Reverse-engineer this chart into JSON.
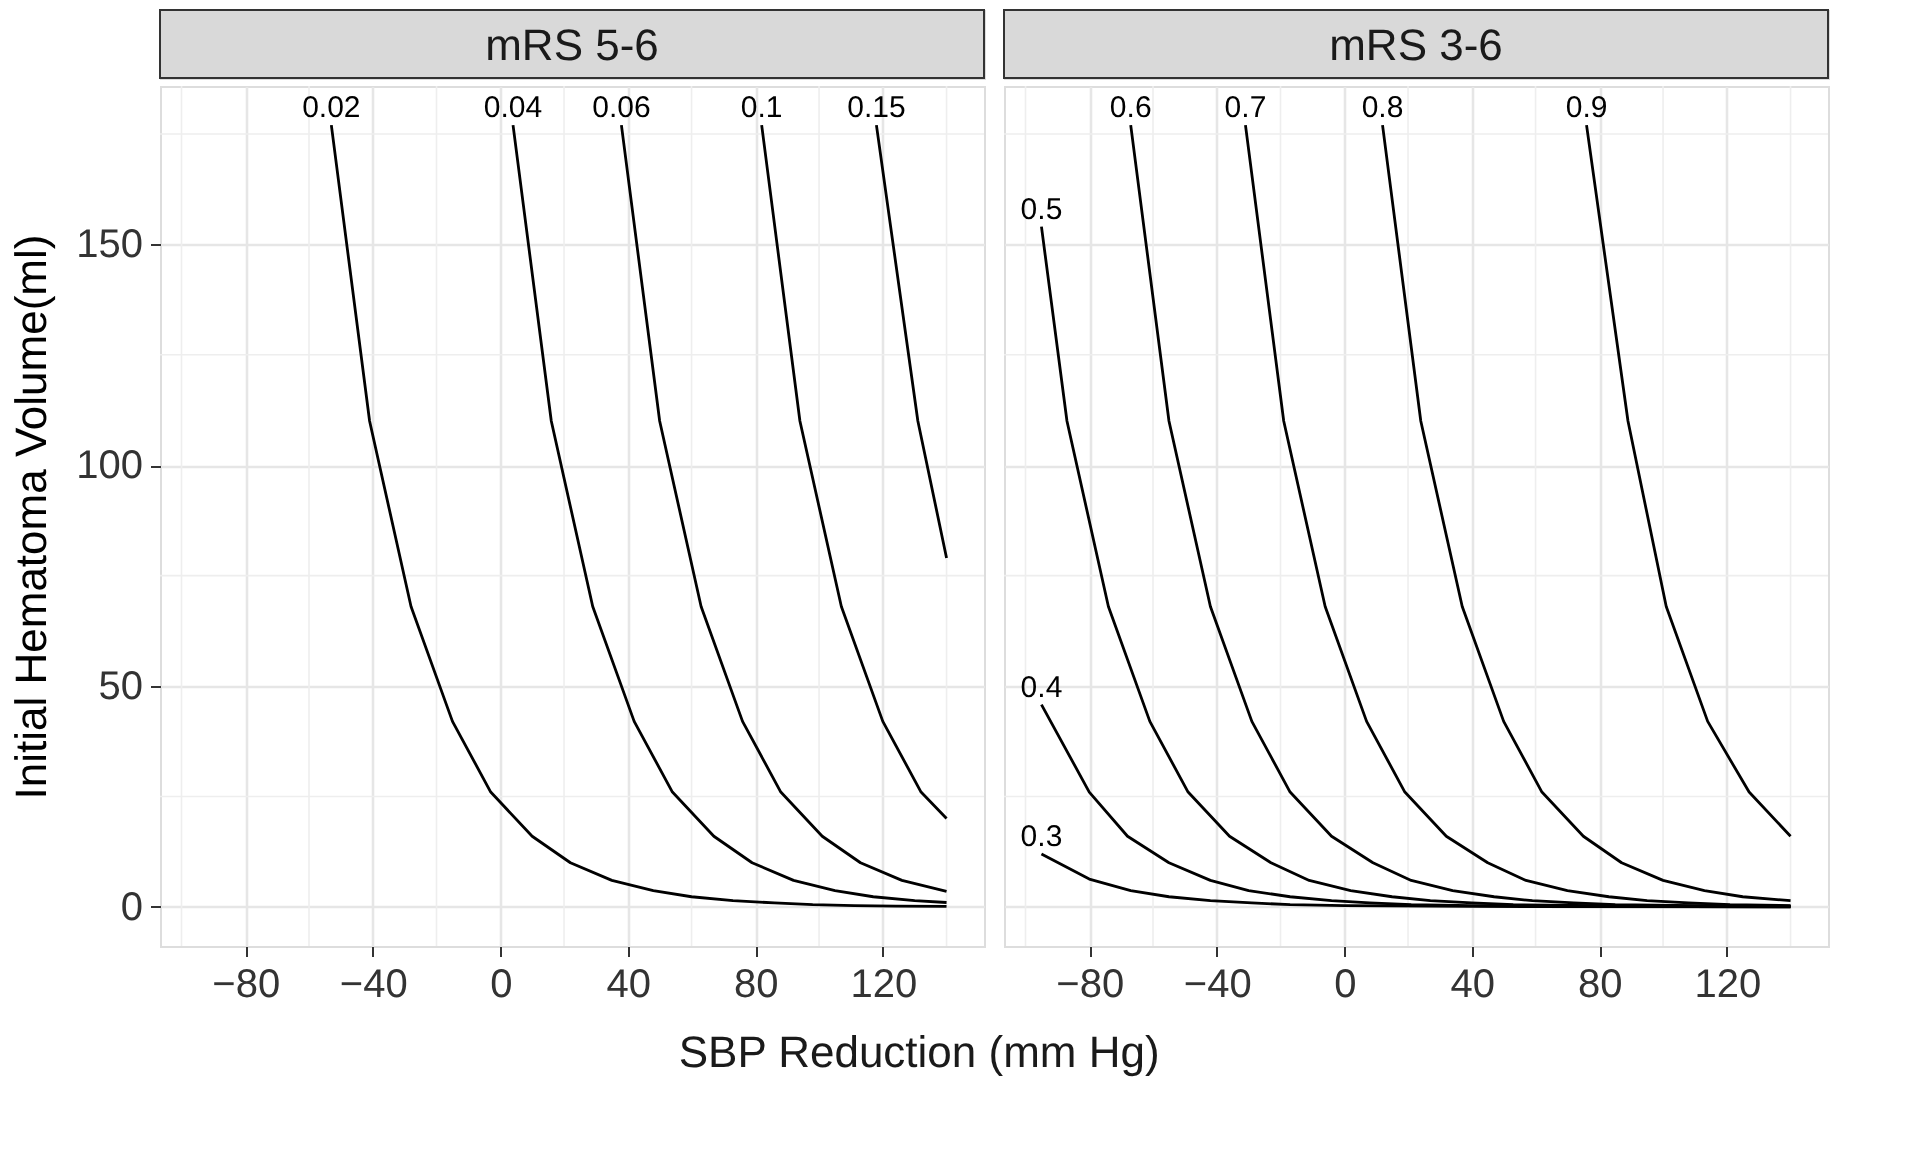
{
  "chart_data": [
    {
      "type": "line",
      "title": "mRS 5-6",
      "xlabel": "SBP Reduction (mm Hg)",
      "ylabel": "Initial Hematoma Volume(ml)",
      "xlim": [
        -106.75,
        151.75
      ],
      "ylim": [
        -8.85,
        185.85
      ],
      "xticks": [
        {
          "value": -100,
          "label": null
        },
        -80,
        {
          "value": -60,
          "label": null
        },
        -40,
        {
          "value": -20,
          "label": null
        },
        0,
        {
          "value": 20,
          "label": null
        },
        40,
        {
          "value": 60,
          "label": null
        },
        80,
        {
          "value": 100,
          "label": null
        },
        120,
        {
          "value": 140,
          "label": null
        }
      ],
      "yticks": [
        0,
        {
          "value": 25,
          "label": null
        },
        50,
        {
          "value": 75,
          "label": null
        },
        100,
        {
          "value": 125,
          "label": null
        },
        150,
        {
          "value": 175,
          "label": null
        }
      ],
      "grid": true,
      "line_style": "solid",
      "series": [
        {
          "name": "0.02",
          "color": "#000000",
          "x": [
            -53,
            -41,
            -28,
            -15,
            -3,
            10,
            22,
            35,
            48,
            60,
            73,
            86,
            98,
            111,
            124,
            140
          ],
          "values": [
            177,
            110,
            68,
            42,
            26,
            16,
            10,
            6,
            3.7,
            2.3,
            1.4,
            0.9,
            0.5,
            0.3,
            0.2,
            0.1
          ]
        },
        {
          "name": "0.04",
          "color": "#000000",
          "x": [
            4,
            16,
            29,
            42,
            54,
            67,
            79,
            92,
            105,
            117,
            130,
            140
          ],
          "values": [
            177,
            110,
            68,
            42,
            26,
            16,
            10,
            6,
            3.7,
            2.3,
            1.4,
            1.0
          ]
        },
        {
          "name": "0.06",
          "color": "#000000",
          "x": [
            38,
            50,
            63,
            76,
            88,
            101,
            113,
            126,
            140
          ],
          "values": [
            177,
            110,
            68,
            42,
            26,
            16,
            10,
            6,
            3.5
          ]
        },
        {
          "name": "0.1",
          "color": "#000000",
          "x": [
            82,
            94,
            107,
            120,
            132,
            140
          ],
          "values": [
            177,
            110,
            68,
            42,
            26,
            20
          ]
        },
        {
          "name": "0.15",
          "color": "#000000",
          "x": [
            118,
            131,
            140
          ],
          "values": [
            177,
            110,
            79
          ]
        }
      ]
    },
    {
      "type": "line",
      "title": "mRS 3-6",
      "xlim": [
        -106.75,
        151.75
      ],
      "ylim": [
        -8.85,
        185.85
      ],
      "xticks": [
        {
          "value": -100,
          "label": null
        },
        -80,
        {
          "value": -60,
          "label": null
        },
        -40,
        {
          "value": -20,
          "label": null
        },
        0,
        {
          "value": 20,
          "label": null
        },
        40,
        {
          "value": 60,
          "label": null
        },
        80,
        {
          "value": 100,
          "label": null
        },
        120,
        {
          "value": 140,
          "label": null
        }
      ],
      "yticks": [
        0,
        {
          "value": 25,
          "label": null
        },
        50,
        {
          "value": 75,
          "label": null
        },
        100,
        {
          "value": 125,
          "label": null
        },
        150,
        {
          "value": 175,
          "label": null
        }
      ],
      "tick_labels": "x",
      "grid": true,
      "line_style": "solid",
      "series": [
        {
          "name": "0.3",
          "color": "#000000",
          "x": [
            -95,
            -80,
            -67,
            -55,
            -42,
            -29,
            -17,
            0,
            40,
            140
          ],
          "values": [
            12,
            6.3,
            3.7,
            2.3,
            1.4,
            0.9,
            0.5,
            0.3,
            0.1,
            0
          ]
        },
        {
          "name": "0.4",
          "color": "#000000",
          "x": [
            -95,
            -80,
            -68,
            -55,
            -42,
            -30,
            -17,
            -4,
            8,
            21,
            40,
            80,
            140
          ],
          "values": [
            45.8,
            26,
            16,
            10,
            6,
            3.7,
            2.3,
            1.4,
            0.9,
            0.5,
            0.3,
            0.1,
            0
          ]
        },
        {
          "name": "0.5",
          "color": "#000000",
          "x": [
            -95,
            -87,
            -74,
            -61,
            -49,
            -36,
            -23,
            -11,
            2,
            15,
            27,
            40,
            53,
            80,
            140
          ],
          "values": [
            154,
            110,
            68,
            42,
            26,
            16,
            10,
            6,
            3.7,
            2.3,
            1.4,
            0.9,
            0.5,
            0.3,
            0.1
          ]
        },
        {
          "name": "0.6",
          "color": "#000000",
          "x": [
            -67,
            -55,
            -42,
            -29,
            -17,
            -4,
            9,
            21,
            34,
            47,
            59,
            72,
            85,
            110,
            140
          ],
          "values": [
            177,
            110,
            68,
            42,
            26,
            16,
            10,
            6,
            3.7,
            2.3,
            1.4,
            0.9,
            0.5,
            0.3,
            0.2
          ]
        },
        {
          "name": "0.7",
          "color": "#000000",
          "x": [
            -31,
            -19,
            -6,
            7,
            19,
            32,
            45,
            57,
            70,
            83,
            95,
            108,
            121,
            140
          ],
          "values": [
            177,
            110,
            68,
            42,
            26,
            16,
            10,
            6,
            3.7,
            2.3,
            1.4,
            0.9,
            0.5,
            0.3
          ]
        },
        {
          "name": "0.8",
          "color": "#000000",
          "x": [
            12,
            24,
            37,
            50,
            62,
            75,
            87,
            100,
            113,
            125,
            140
          ],
          "values": [
            177,
            110,
            68,
            42,
            26,
            16,
            10,
            6,
            3.7,
            2.3,
            1.4
          ]
        },
        {
          "name": "0.9",
          "color": "#000000",
          "x": [
            76,
            89,
            101,
            114,
            127,
            140
          ],
          "values": [
            177,
            110,
            68,
            42,
            26,
            16
          ]
        }
      ]
    }
  ]
}
